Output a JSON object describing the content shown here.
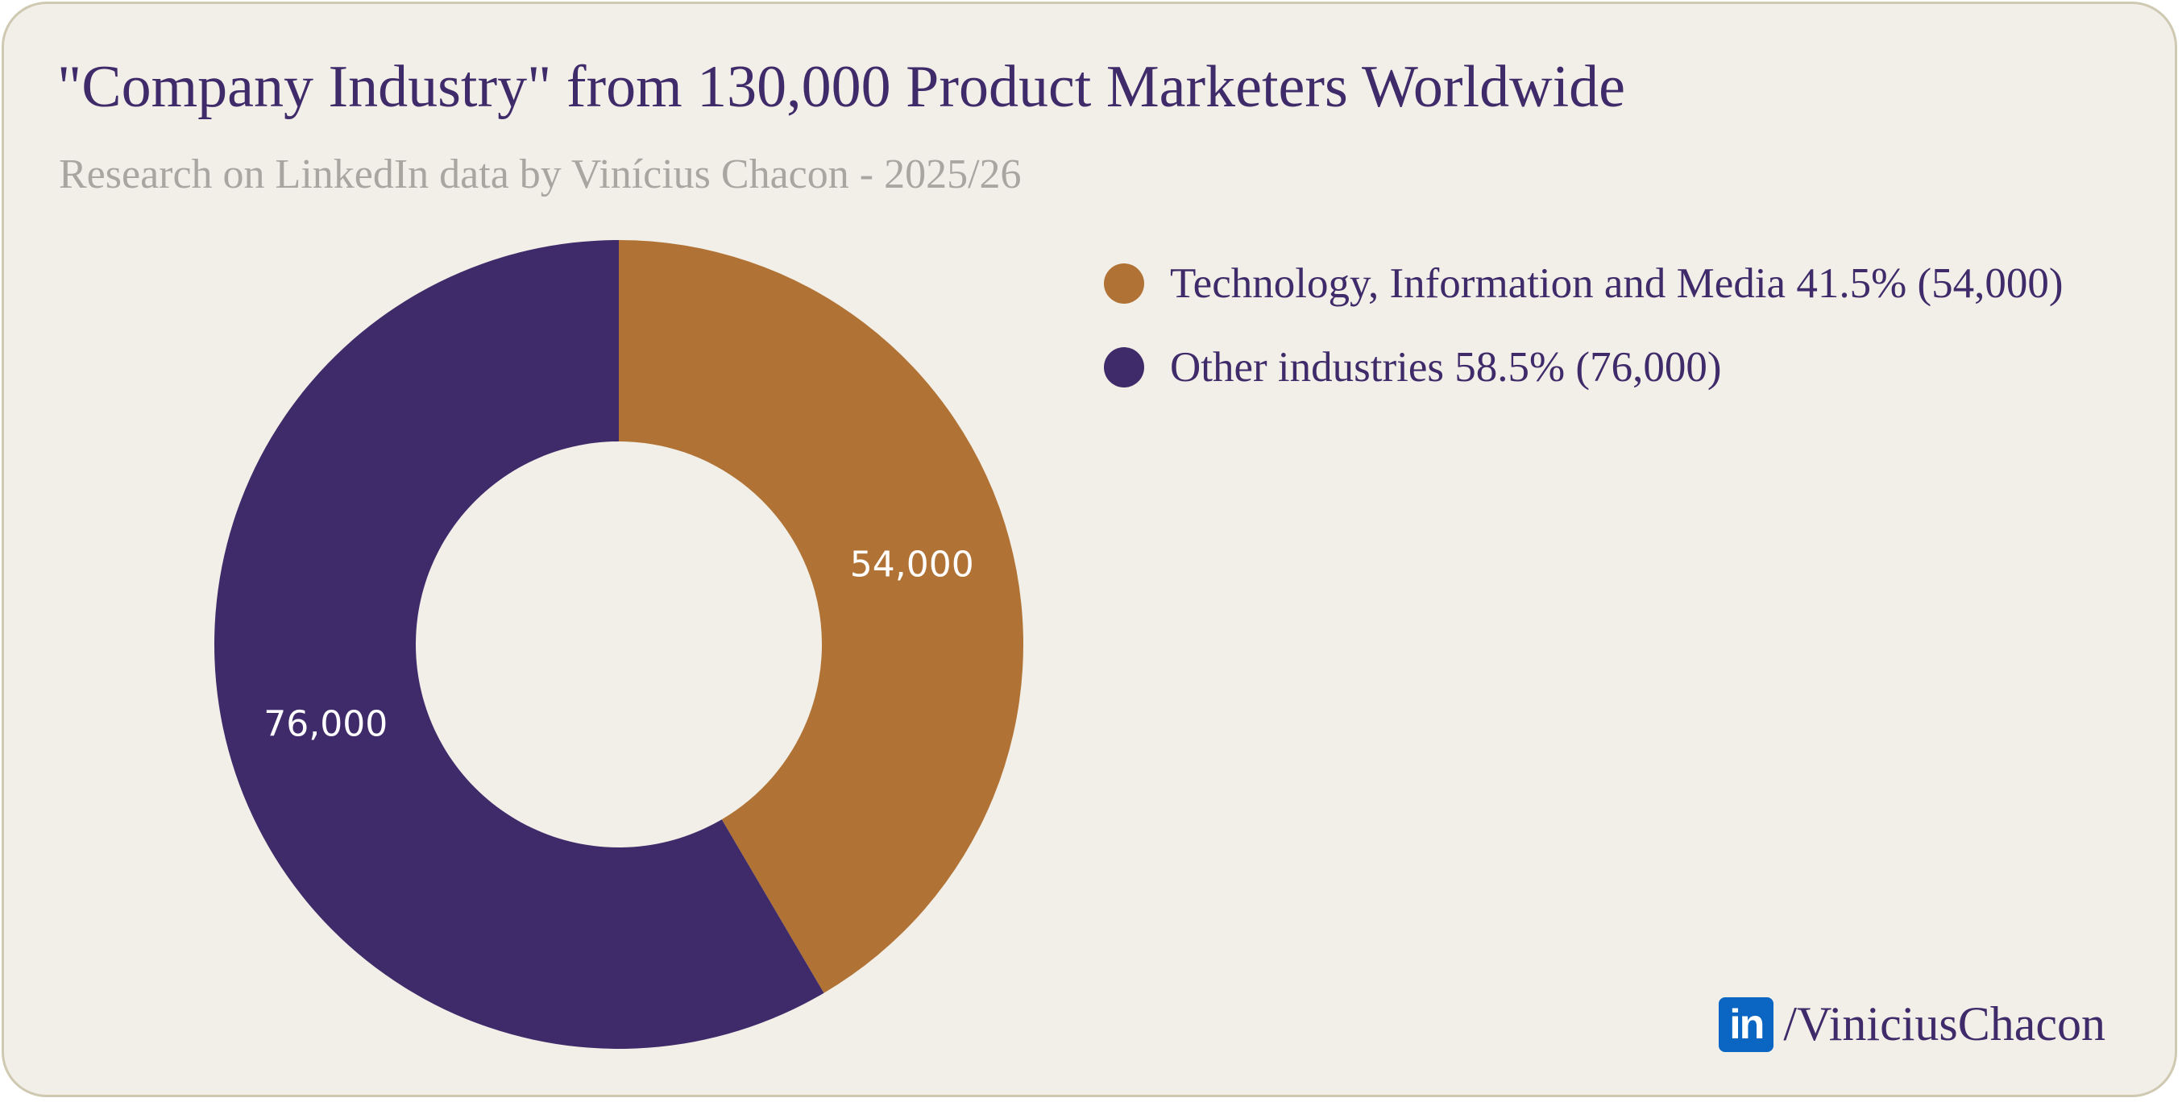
{
  "chart_data": {
    "type": "pie",
    "variant": "donut",
    "title": "\"Company Industry\" from 130,000 Product Marketers Worldwide",
    "subtitle": "Research on LinkedIn data by Vinícius Chacon - 2025/26",
    "slices": [
      {
        "label": "Technology, Information and Media",
        "value": 54000,
        "percent": 41.5,
        "data_label": "54,000",
        "color": "#b07335",
        "legend": "Technology, Information and Media 41.5% (54,000)"
      },
      {
        "label": "Other industries",
        "value": 76000,
        "percent": 58.5,
        "data_label": "76,000",
        "color": "#3f2b6a",
        "legend": "Other industries 58.5% (76,000)"
      }
    ],
    "legend_position": "right",
    "start": "top",
    "direction": "clockwise"
  },
  "footer": {
    "logo_text": "in",
    "handle": "/ViniciusChacon",
    "logo_color": "#0a66c2"
  }
}
